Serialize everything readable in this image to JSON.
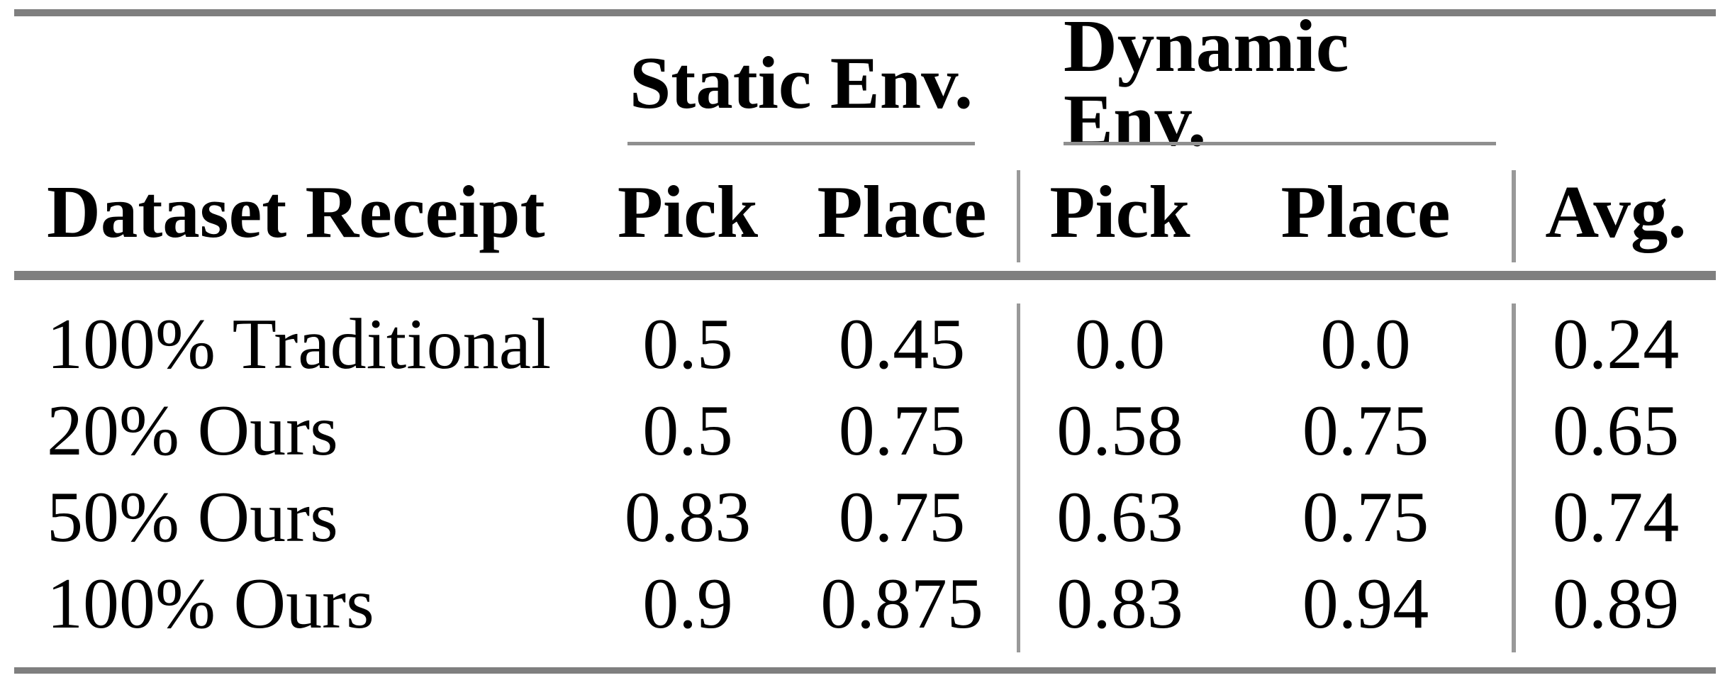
{
  "table": {
    "groups": [
      "Static Env.",
      "Dynamic Env."
    ],
    "columns": [
      "Dataset Receipt",
      "Pick",
      "Place",
      "Pick",
      "Place",
      "Avg."
    ],
    "rows": [
      {
        "cells": [
          "100% Traditional",
          "0.5",
          "0.45",
          "0.0",
          "0.0",
          "0.24"
        ]
      },
      {
        "cells": [
          "20% Ours",
          "0.5",
          "0.75",
          "0.58",
          "0.75",
          "0.65"
        ]
      },
      {
        "cells": [
          "50% Ours",
          "0.83",
          "0.75",
          "0.63",
          "0.75",
          "0.74"
        ]
      },
      {
        "cells": [
          "100% Ours",
          "0.9",
          "0.875",
          "0.83",
          "0.94",
          "0.89"
        ]
      }
    ]
  },
  "colors": {
    "background": "#ffffff",
    "text": "#000000",
    "rule_heavy": "#7f7f7f",
    "rule_light": "#999999",
    "cmidrule": "#8f8f8f"
  },
  "chart_data": {
    "type": "table",
    "title": "",
    "column_groups": [
      {
        "label": "Static Env.",
        "columns": [
          "Pick",
          "Place"
        ]
      },
      {
        "label": "Dynamic Env.",
        "columns": [
          "Pick",
          "Place"
        ]
      }
    ],
    "row_header": "Dataset Receipt",
    "categories": [
      "100% Traditional",
      "20% Ours",
      "50% Ours",
      "100% Ours"
    ],
    "series": [
      {
        "name": "Static Env. Pick",
        "values": [
          0.5,
          0.5,
          0.83,
          0.9
        ]
      },
      {
        "name": "Static Env. Place",
        "values": [
          0.45,
          0.75,
          0.75,
          0.875
        ]
      },
      {
        "name": "Dynamic Env. Pick",
        "values": [
          0.0,
          0.58,
          0.63,
          0.83
        ]
      },
      {
        "name": "Dynamic Env. Place",
        "values": [
          0.0,
          0.75,
          0.75,
          0.94
        ]
      },
      {
        "name": "Avg.",
        "values": [
          0.24,
          0.65,
          0.74,
          0.89
        ]
      }
    ]
  }
}
